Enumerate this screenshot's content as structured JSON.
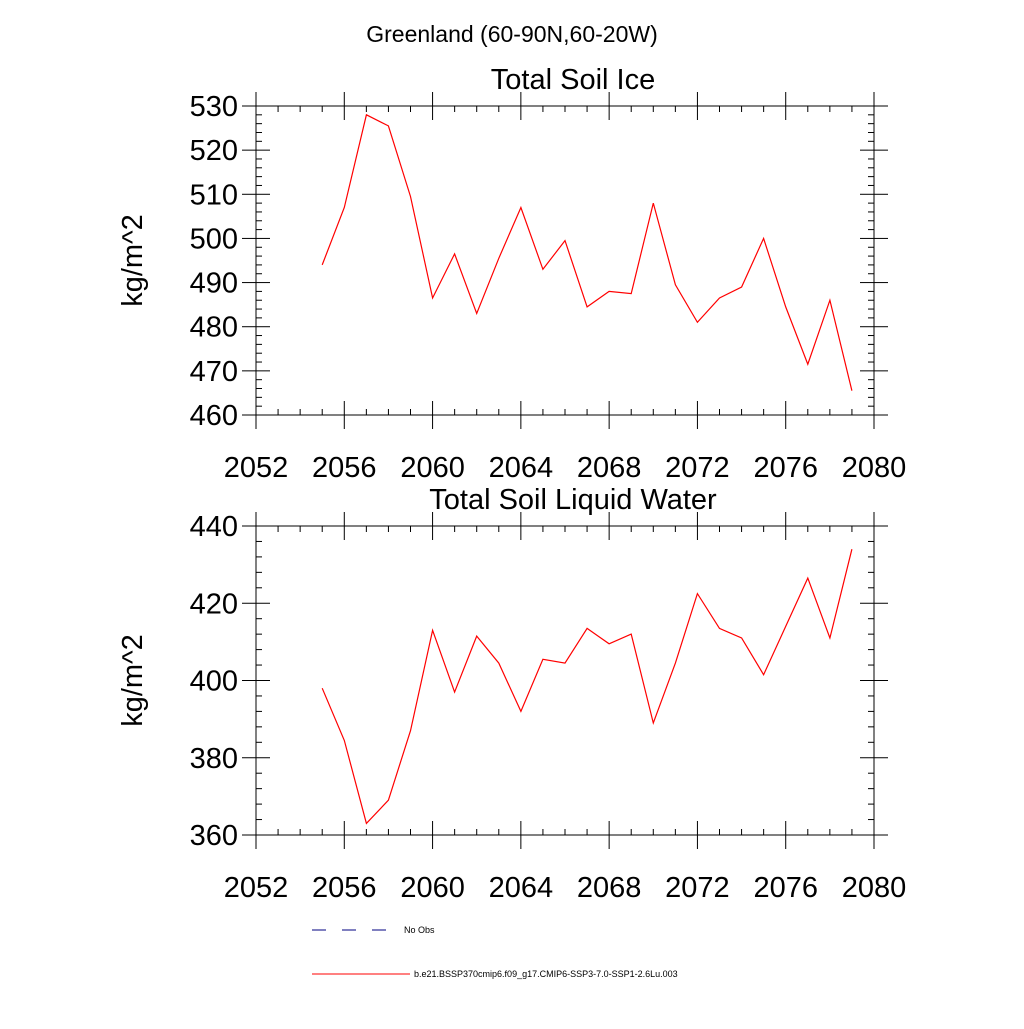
{
  "figure_title": "Greenland (60-90N,60-20W)",
  "legend": {
    "items": [
      {
        "label": "No Obs",
        "color": "#000080",
        "dash": true
      },
      {
        "label": "b.e21.BSSP370cmip6.f09_g17.CMIP6-SSP3-7.0-SSP1-2.6Lu.003",
        "color": "#ff0000",
        "dash": false
      }
    ]
  },
  "chart_data": [
    {
      "type": "line",
      "title": "Total Soil Ice",
      "ylabel": "kg/m^2",
      "xlabel": "",
      "xlim": [
        2052,
        2080
      ],
      "ylim": [
        460,
        530
      ],
      "xticks": [
        2052,
        2056,
        2060,
        2064,
        2068,
        2072,
        2076,
        2080
      ],
      "yticks": [
        460,
        470,
        480,
        490,
        500,
        510,
        520,
        530
      ],
      "grid": false,
      "series": [
        {
          "name": "b.e21.BSSP370cmip6.f09_g17.CMIP6-SSP3-7.0-SSP1-2.6Lu.003",
          "color": "#ff0000",
          "x": [
            2055,
            2056,
            2057,
            2058,
            2059,
            2060,
            2061,
            2062,
            2063,
            2064,
            2065,
            2066,
            2067,
            2068,
            2069,
            2070,
            2071,
            2072,
            2073,
            2074,
            2075,
            2076,
            2077,
            2078,
            2079
          ],
          "values": [
            494,
            507,
            528,
            525.5,
            509.5,
            486.5,
            496.5,
            483,
            495.5,
            507,
            493,
            499.5,
            484.5,
            488,
            487.5,
            508,
            489.5,
            481,
            486.5,
            489,
            500,
            484.5,
            471.5,
            486,
            465.5
          ]
        }
      ]
    },
    {
      "type": "line",
      "title": "Total Soil Liquid Water",
      "ylabel": "kg/m^2",
      "xlabel": "",
      "xlim": [
        2052,
        2080
      ],
      "ylim": [
        360,
        440
      ],
      "xticks": [
        2052,
        2056,
        2060,
        2064,
        2068,
        2072,
        2076,
        2080
      ],
      "yticks": [
        360,
        380,
        400,
        420,
        440
      ],
      "grid": false,
      "series": [
        {
          "name": "b.e21.BSSP370cmip6.f09_g17.CMIP6-SSP3-7.0-SSP1-2.6Lu.003",
          "color": "#ff0000",
          "x": [
            2055,
            2056,
            2057,
            2058,
            2059,
            2060,
            2061,
            2062,
            2063,
            2064,
            2065,
            2066,
            2067,
            2068,
            2069,
            2070,
            2071,
            2072,
            2073,
            2074,
            2075,
            2076,
            2077,
            2078,
            2079
          ],
          "values": [
            398,
            384.5,
            363,
            369,
            387,
            413,
            397,
            411.5,
            404.5,
            392,
            405.5,
            404.5,
            413.5,
            409.5,
            412,
            389,
            404.5,
            422.5,
            413.5,
            411,
            401.5,
            414,
            426.5,
            411,
            434
          ]
        }
      ]
    }
  ]
}
